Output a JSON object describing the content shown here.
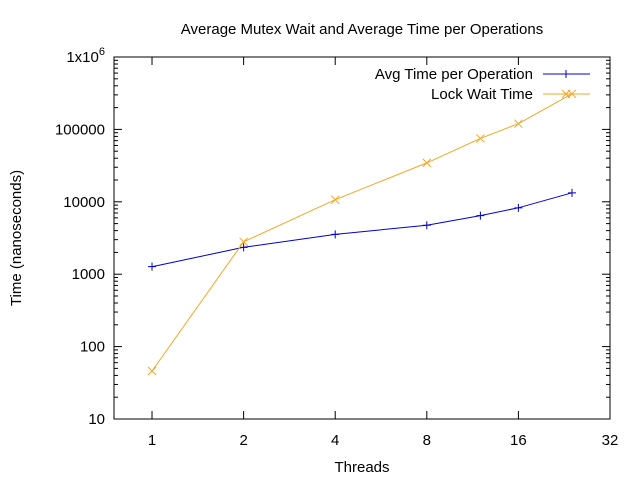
{
  "chart_data": {
    "type": "line",
    "title": "Average Mutex Wait and Average Time per Operations",
    "xlabel": "Threads",
    "ylabel": "Time (nanoseconds)",
    "x_scale": "log2",
    "y_scale": "log10",
    "xlim": [
      0.75,
      32
    ],
    "ylim": [
      10,
      1000000
    ],
    "x_ticks": [
      {
        "value": 1,
        "label": "1"
      },
      {
        "value": 2,
        "label": "2"
      },
      {
        "value": 4,
        "label": "4"
      },
      {
        "value": 8,
        "label": "8"
      },
      {
        "value": 16,
        "label": "16"
      },
      {
        "value": 32,
        "label": "32"
      }
    ],
    "y_ticks": [
      {
        "value": 10,
        "label": "10"
      },
      {
        "value": 100,
        "label": "100"
      },
      {
        "value": 1000,
        "label": "1000"
      },
      {
        "value": 10000,
        "label": "10000"
      },
      {
        "value": 100000,
        "label": "100000"
      },
      {
        "value": 1000000,
        "label": "1x10",
        "sup": "6"
      }
    ],
    "grid": false,
    "legend_position": "top-right",
    "series": [
      {
        "name": "Avg Time per Operation",
        "color": "#0000cc",
        "marker": "plus",
        "x": [
          1,
          2,
          4,
          8,
          12,
          16,
          24
        ],
        "y": [
          1270,
          2350,
          3550,
          4750,
          6450,
          8250,
          13300
        ]
      },
      {
        "name": "Lock Wait Time",
        "color": "#f5a623",
        "marker": "cross",
        "x": [
          1,
          2,
          4,
          8,
          12,
          16,
          24
        ],
        "y": [
          46,
          2800,
          10700,
          34500,
          75000,
          120000,
          310000
        ]
      }
    ]
  }
}
